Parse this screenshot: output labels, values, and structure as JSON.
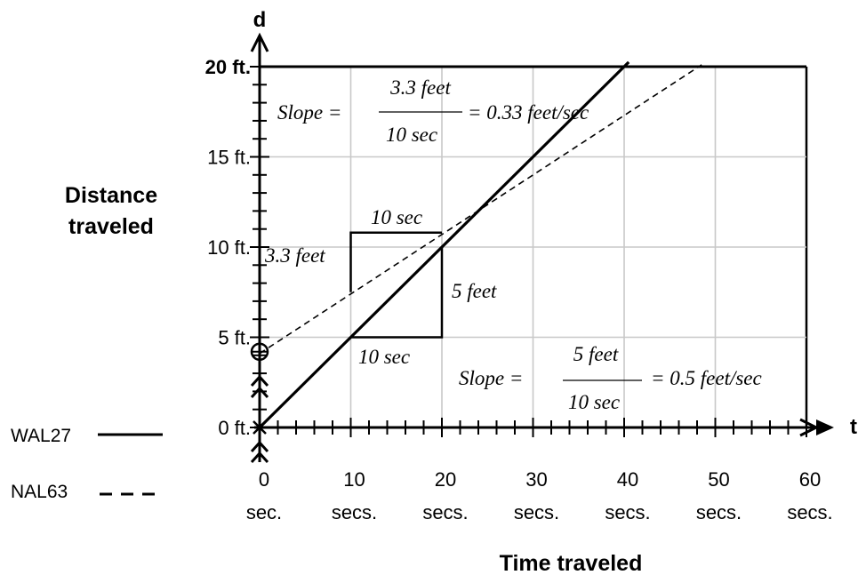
{
  "chart_data": {
    "type": "line",
    "xlabel": "Time traveled",
    "ylabel_lines": [
      "Distance",
      "traveled"
    ],
    "x_axis_letter": "t",
    "y_axis_letter": "d",
    "xlim": [
      0,
      60
    ],
    "ylim": [
      0,
      20
    ],
    "grid": true,
    "x_ticks": [
      {
        "value": 0,
        "line1": "0",
        "line2": "sec."
      },
      {
        "value": 10,
        "line1": "10",
        "line2": "secs."
      },
      {
        "value": 20,
        "line1": "20",
        "line2": "secs."
      },
      {
        "value": 30,
        "line1": "30",
        "line2": "secs."
      },
      {
        "value": 40,
        "line1": "40",
        "line2": "secs."
      },
      {
        "value": 50,
        "line1": "50",
        "line2": "secs."
      },
      {
        "value": 60,
        "line1": "60",
        "line2": "secs."
      }
    ],
    "y_ticks": [
      {
        "value": 0,
        "label": "0 ft."
      },
      {
        "value": 5,
        "label": "5 ft."
      },
      {
        "value": 10,
        "label": "10 ft."
      },
      {
        "value": 15,
        "label": "15 ft."
      },
      {
        "value": 20,
        "label": "20 ft."
      }
    ],
    "series": [
      {
        "name": "WAL27",
        "style": "solid",
        "x": [
          0,
          40.5
        ],
        "y": [
          0,
          20.25
        ]
      },
      {
        "name": "NAL63",
        "style": "dashed",
        "x": [
          0,
          48.5
        ],
        "y": [
          4.1,
          20.1
        ]
      }
    ],
    "legend_position": "bottom-left",
    "slope_triangles": [
      {
        "x0": 10,
        "x1": 20,
        "y0": 5,
        "y1": 10,
        "label_run": "10 sec",
        "label_rise": "5 feet"
      },
      {
        "x0": 10,
        "x1": 20,
        "y0": 7.5,
        "y1": 10.8,
        "label_run": "10 sec",
        "label_rise": "3.3 feet"
      }
    ],
    "annotations": {
      "upper": {
        "prefix": "Slope  =",
        "numerator": "3.3 feet",
        "denominator": "10 sec",
        "result": "= 0.33 feet/sec"
      },
      "lower": {
        "prefix": "Slope  =",
        "numerator": "5 feet",
        "denominator": "10 sec",
        "result": "= 0.5 feet/sec"
      }
    }
  }
}
